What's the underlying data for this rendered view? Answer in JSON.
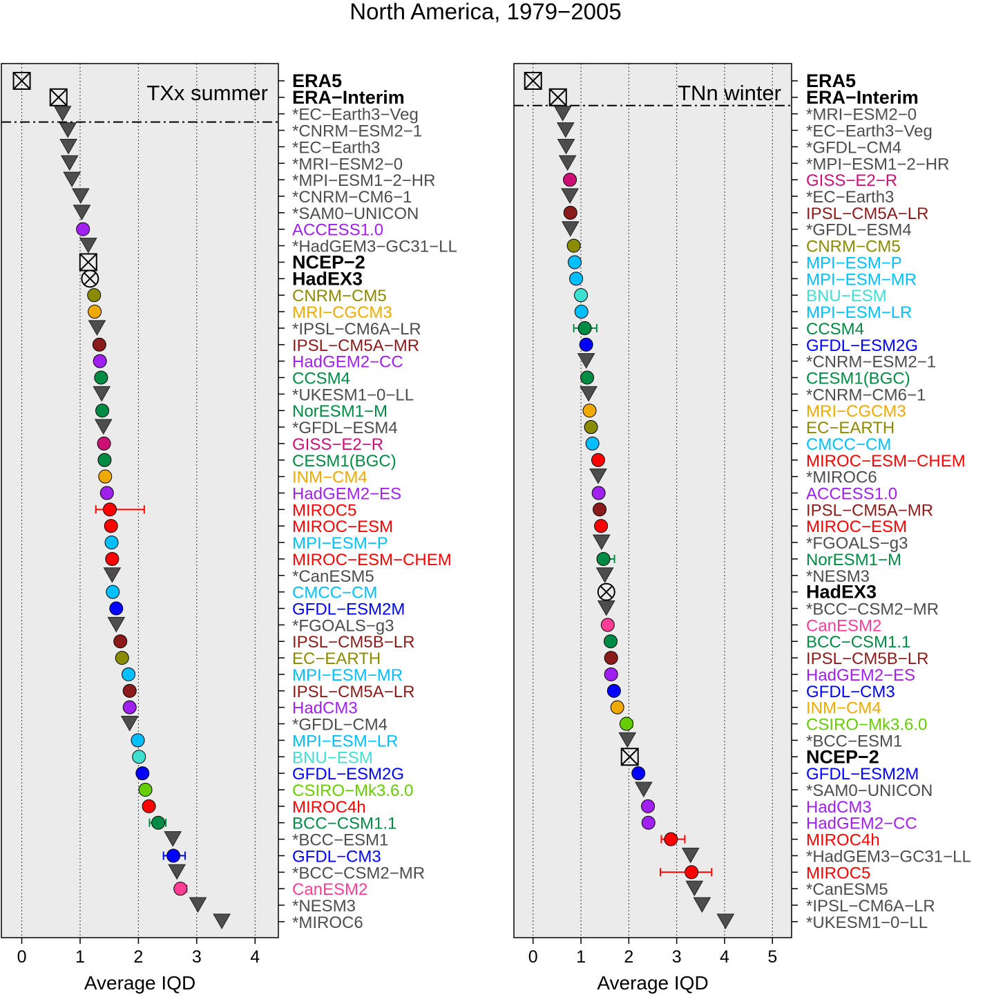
{
  "chart_data": {
    "type": "scatter",
    "title": "North America, 1979−2005",
    "panels": [
      {
        "label": "TXx summer",
        "xlabel": "Average IQD",
        "xlim": [
          -0.35,
          4.4
        ],
        "xticks": [
          0,
          1,
          2,
          3,
          4
        ],
        "separator_after": 3,
        "rows": [
          {
            "n": "ERA5",
            "v": 0.0,
            "k": "boxx",
            "c": "#000000"
          },
          {
            "n": "ERA−Interim",
            "v": 0.63,
            "k": "boxx",
            "c": "#000000"
          },
          {
            "n": "*EC−Earth3−Veg",
            "v": 0.7,
            "k": "tri",
            "c": "#4d4d4d"
          },
          {
            "n": "*CNRM−ESM2−1",
            "v": 0.79,
            "k": "tri",
            "c": "#4d4d4d"
          },
          {
            "n": "*EC−Earth3",
            "v": 0.8,
            "k": "tri",
            "c": "#4d4d4d"
          },
          {
            "n": "*MRI−ESM2−0",
            "v": 0.82,
            "k": "tri",
            "c": "#4d4d4d"
          },
          {
            "n": "*MPI−ESM1−2−HR",
            "v": 0.86,
            "k": "tri",
            "c": "#4d4d4d"
          },
          {
            "n": "*CNRM−CM6−1",
            "v": 1.01,
            "k": "tri",
            "c": "#4d4d4d"
          },
          {
            "n": "*SAM0−UNICON",
            "v": 1.03,
            "k": "tri",
            "c": "#4d4d4d"
          },
          {
            "n": "ACCESS1.0",
            "v": 1.05,
            "k": "circ",
            "c": "#A020F0"
          },
          {
            "n": "*HadGEM3−GC31−LL",
            "v": 1.14,
            "k": "tri",
            "c": "#4d4d4d"
          },
          {
            "n": "NCEP−2",
            "v": 1.14,
            "k": "boxx",
            "c": "#000000"
          },
          {
            "n": "HadEX3",
            "v": 1.17,
            "k": "circx",
            "c": "#000000"
          },
          {
            "n": "CNRM−CM5",
            "v": 1.24,
            "k": "circ",
            "c": "#8B8B00"
          },
          {
            "n": "MRI−CGCM3",
            "v": 1.25,
            "k": "circ",
            "c": "#EEAA00"
          },
          {
            "n": "*IPSL−CM6A−LR",
            "v": 1.29,
            "k": "tri",
            "c": "#4d4d4d"
          },
          {
            "n": "IPSL−CM5A−MR",
            "v": 1.33,
            "k": "circ",
            "c": "#8B1A1A"
          },
          {
            "n": "HadGEM2−CC",
            "v": 1.34,
            "k": "circ",
            "c": "#A020F0"
          },
          {
            "n": "CCSM4",
            "v": 1.36,
            "k": "circ",
            "c": "#008B45"
          },
          {
            "n": "*UKESM1−0−LL",
            "v": 1.37,
            "k": "tri",
            "c": "#4d4d4d"
          },
          {
            "n": "NorESM1−M",
            "v": 1.38,
            "k": "circ",
            "c": "#008B45"
          },
          {
            "n": "*GFDL−ESM4",
            "v": 1.4,
            "k": "tri",
            "c": "#4d4d4d"
          },
          {
            "n": "GISS−E2−R",
            "v": 1.41,
            "k": "circ",
            "c": "#CD1076"
          },
          {
            "n": "CESM1(BGC)",
            "v": 1.42,
            "k": "circ",
            "c": "#008B45"
          },
          {
            "n": "INM−CM4",
            "v": 1.43,
            "k": "circ",
            "c": "#EEAA00"
          },
          {
            "n": "HadGEM2−ES",
            "v": 1.46,
            "k": "circ",
            "c": "#A020F0"
          },
          {
            "n": "MIROC5",
            "v": 1.51,
            "k": "circ",
            "c": "#FF0000",
            "e": [
              1.27,
              2.1
            ]
          },
          {
            "n": "MIROC−ESM",
            "v": 1.53,
            "k": "circ",
            "c": "#FF0000"
          },
          {
            "n": "MPI−ESM−P",
            "v": 1.54,
            "k": "circ",
            "c": "#00BFFF"
          },
          {
            "n": "MIROC−ESM−CHEM",
            "v": 1.55,
            "k": "circ",
            "c": "#FF0000"
          },
          {
            "n": "*CanESM5",
            "v": 1.55,
            "k": "tri",
            "c": "#4d4d4d"
          },
          {
            "n": "CMCC−CM",
            "v": 1.56,
            "k": "circ",
            "c": "#00BFFF"
          },
          {
            "n": "GFDL−ESM2M",
            "v": 1.62,
            "k": "circ",
            "c": "#0000FF"
          },
          {
            "n": "*FGOALS−g3",
            "v": 1.62,
            "k": "tri",
            "c": "#4d4d4d"
          },
          {
            "n": "IPSL−CM5B−LR",
            "v": 1.69,
            "k": "circ",
            "c": "#8B1A1A"
          },
          {
            "n": "EC−EARTH",
            "v": 1.72,
            "k": "circ",
            "c": "#8B8B00"
          },
          {
            "n": "MPI−ESM−MR",
            "v": 1.83,
            "k": "circ",
            "c": "#00BFFF"
          },
          {
            "n": "IPSL−CM5A−LR",
            "v": 1.85,
            "k": "circ",
            "c": "#8B1A1A"
          },
          {
            "n": "HadCM3",
            "v": 1.85,
            "k": "circ",
            "c": "#A020F0"
          },
          {
            "n": "*GFDL−CM4",
            "v": 1.85,
            "k": "tri",
            "c": "#4d4d4d"
          },
          {
            "n": "MPI−ESM−LR",
            "v": 1.99,
            "k": "circ",
            "c": "#00BFFF"
          },
          {
            "n": "BNU−ESM",
            "v": 2.01,
            "k": "circ",
            "c": "#40E0D0"
          },
          {
            "n": "GFDL−ESM2G",
            "v": 2.07,
            "k": "circ",
            "c": "#0000FF"
          },
          {
            "n": "CSIRO−Mk3.6.0",
            "v": 2.12,
            "k": "circ",
            "c": "#66CD00",
            "e": [
              2.08,
              2.2
            ]
          },
          {
            "n": "MIROC4h",
            "v": 2.18,
            "k": "circ",
            "c": "#FF0000"
          },
          {
            "n": "BCC−CSM1.1",
            "v": 2.34,
            "k": "circ",
            "c": "#008B45",
            "e": [
              2.19,
              2.47
            ]
          },
          {
            "n": "*BCC−ESM1",
            "v": 2.59,
            "k": "tri",
            "c": "#4d4d4d"
          },
          {
            "n": "GFDL−CM3",
            "v": 2.6,
            "k": "circ",
            "c": "#0000FF",
            "e": [
              2.43,
              2.8
            ]
          },
          {
            "n": "*BCC−CSM2−MR",
            "v": 2.66,
            "k": "tri",
            "c": "#4d4d4d"
          },
          {
            "n": "CanESM2",
            "v": 2.72,
            "k": "circ",
            "c": "#FF3E96",
            "e": [
              2.68,
              2.83
            ]
          },
          {
            "n": "*NESM3",
            "v": 3.02,
            "k": "tri",
            "c": "#4d4d4d"
          },
          {
            "n": "*MIROC6",
            "v": 3.43,
            "k": "tri",
            "c": "#4d4d4d"
          }
        ]
      },
      {
        "label": "TNn winter",
        "xlabel": "Average IQD",
        "xlim": [
          -0.4,
          5.4
        ],
        "xticks": [
          0,
          1,
          2,
          3,
          4,
          5
        ],
        "separator_after": 2,
        "rows": [
          {
            "n": "ERA5",
            "v": 0.0,
            "k": "boxx",
            "c": "#000000"
          },
          {
            "n": "ERA−Interim",
            "v": 0.52,
            "k": "boxx",
            "c": "#000000"
          },
          {
            "n": "*MRI−ESM2−0",
            "v": 0.62,
            "k": "tri",
            "c": "#4d4d4d"
          },
          {
            "n": "*EC−Earth3−Veg",
            "v": 0.68,
            "k": "tri",
            "c": "#4d4d4d"
          },
          {
            "n": "*GFDL−CM4",
            "v": 0.69,
            "k": "tri",
            "c": "#4d4d4d"
          },
          {
            "n": "*MPI−ESM1−2−HR",
            "v": 0.72,
            "k": "tri",
            "c": "#4d4d4d"
          },
          {
            "n": "GISS−E2−R",
            "v": 0.77,
            "k": "circ",
            "c": "#CD1076"
          },
          {
            "n": "*EC−Earth3",
            "v": 0.77,
            "k": "tri",
            "c": "#4d4d4d"
          },
          {
            "n": "IPSL−CM5A−LR",
            "v": 0.78,
            "k": "circ",
            "c": "#8B1A1A"
          },
          {
            "n": "*GFDL−ESM4",
            "v": 0.78,
            "k": "tri",
            "c": "#4d4d4d"
          },
          {
            "n": "CNRM−CM5",
            "v": 0.85,
            "k": "circ",
            "c": "#8B8B00"
          },
          {
            "n": "MPI−ESM−P",
            "v": 0.87,
            "k": "circ",
            "c": "#00BFFF"
          },
          {
            "n": "MPI−ESM−MR",
            "v": 0.9,
            "k": "circ",
            "c": "#00BFFF"
          },
          {
            "n": "BNU−ESM",
            "v": 1.0,
            "k": "circ",
            "c": "#40E0D0"
          },
          {
            "n": "MPI−ESM−LR",
            "v": 1.01,
            "k": "circ",
            "c": "#00BFFF"
          },
          {
            "n": "CCSM4",
            "v": 1.08,
            "k": "circ",
            "c": "#008B45",
            "e": [
              0.85,
              1.33
            ]
          },
          {
            "n": "GFDL−ESM2G",
            "v": 1.11,
            "k": "circ",
            "c": "#0000FF"
          },
          {
            "n": "*CNRM−ESM2−1",
            "v": 1.11,
            "k": "tri",
            "c": "#4d4d4d"
          },
          {
            "n": "CESM1(BGC)",
            "v": 1.13,
            "k": "circ",
            "c": "#008B45"
          },
          {
            "n": "*CNRM−CM6−1",
            "v": 1.16,
            "k": "tri",
            "c": "#4d4d4d"
          },
          {
            "n": "MRI−CGCM3",
            "v": 1.18,
            "k": "circ",
            "c": "#EEAA00"
          },
          {
            "n": "EC−EARTH",
            "v": 1.21,
            "k": "circ",
            "c": "#8B8B00"
          },
          {
            "n": "CMCC−CM",
            "v": 1.24,
            "k": "circ",
            "c": "#00BFFF"
          },
          {
            "n": "MIROC−ESM−CHEM",
            "v": 1.36,
            "k": "circ",
            "c": "#FF0000"
          },
          {
            "n": "*MIROC6",
            "v": 1.36,
            "k": "tri",
            "c": "#4d4d4d"
          },
          {
            "n": "ACCESS1.0",
            "v": 1.37,
            "k": "circ",
            "c": "#A020F0"
          },
          {
            "n": "IPSL−CM5A−MR",
            "v": 1.39,
            "k": "circ",
            "c": "#8B1A1A"
          },
          {
            "n": "MIROC−ESM",
            "v": 1.42,
            "k": "circ",
            "c": "#FF0000"
          },
          {
            "n": "*FGOALS−g3",
            "v": 1.43,
            "k": "tri",
            "c": "#4d4d4d"
          },
          {
            "n": "NorESM1−M",
            "v": 1.47,
            "k": "circ",
            "c": "#008B45",
            "e": [
              1.36,
              1.7
            ]
          },
          {
            "n": "*NESM3",
            "v": 1.5,
            "k": "tri",
            "c": "#4d4d4d"
          },
          {
            "n": "HadEX3",
            "v": 1.53,
            "k": "circx",
            "c": "#000000"
          },
          {
            "n": "*BCC−CSM2−MR",
            "v": 1.53,
            "k": "tri",
            "c": "#4d4d4d"
          },
          {
            "n": "CanESM2",
            "v": 1.56,
            "k": "circ",
            "c": "#FF3E96"
          },
          {
            "n": "BCC−CSM1.1",
            "v": 1.62,
            "k": "circ",
            "c": "#008B45"
          },
          {
            "n": "IPSL−CM5B−LR",
            "v": 1.63,
            "k": "circ",
            "c": "#8B1A1A"
          },
          {
            "n": "HadGEM2−ES",
            "v": 1.63,
            "k": "circ",
            "c": "#A020F0",
            "e": [
              1.52,
              1.74
            ]
          },
          {
            "n": "GFDL−CM3",
            "v": 1.69,
            "k": "circ",
            "c": "#0000FF"
          },
          {
            "n": "INM−CM4",
            "v": 1.76,
            "k": "circ",
            "c": "#EEAA00"
          },
          {
            "n": "CSIRO−Mk3.6.0",
            "v": 1.95,
            "k": "circ",
            "c": "#66CD00",
            "e": [
              1.88,
              2.08
            ]
          },
          {
            "n": "*BCC−ESM1",
            "v": 1.97,
            "k": "tri",
            "c": "#4d4d4d"
          },
          {
            "n": "NCEP−2",
            "v": 2.02,
            "k": "boxx",
            "c": "#000000"
          },
          {
            "n": "GFDL−ESM2M",
            "v": 2.2,
            "k": "circ",
            "c": "#0000FF"
          },
          {
            "n": "*SAM0−UNICON",
            "v": 2.31,
            "k": "tri",
            "c": "#4d4d4d"
          },
          {
            "n": "HadCM3",
            "v": 2.4,
            "k": "circ",
            "c": "#A020F0"
          },
          {
            "n": "HadGEM2−CC",
            "v": 2.41,
            "k": "circ",
            "c": "#A020F0"
          },
          {
            "n": "MIROC4h",
            "v": 2.88,
            "k": "circ",
            "c": "#FF0000",
            "e": [
              2.68,
              3.17
            ]
          },
          {
            "n": "*HadGEM3−GC31−LL",
            "v": 3.29,
            "k": "tri",
            "c": "#4d4d4d"
          },
          {
            "n": "MIROC5",
            "v": 3.31,
            "k": "circ",
            "c": "#FF0000",
            "e": [
              2.66,
              3.73
            ]
          },
          {
            "n": "*CanESM5",
            "v": 3.37,
            "k": "tri",
            "c": "#4d4d4d"
          },
          {
            "n": "*IPSL−CM6A−LR",
            "v": 3.53,
            "k": "tri",
            "c": "#4d4d4d"
          },
          {
            "n": "*UKESM1−0−LL",
            "v": 4.02,
            "k": "tri",
            "c": "#4d4d4d"
          }
        ]
      }
    ]
  }
}
